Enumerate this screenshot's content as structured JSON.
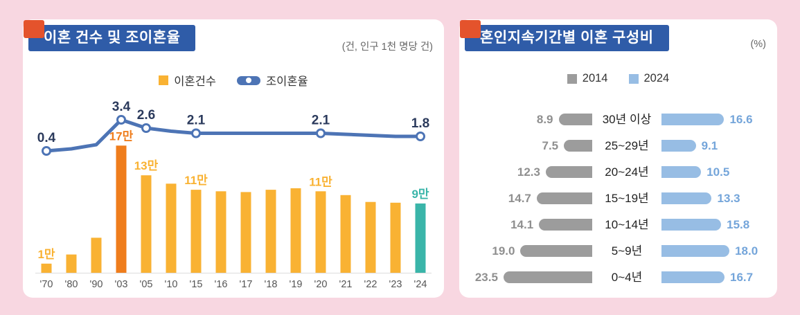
{
  "colors": {
    "page_background": "#f8d7e1",
    "card_background": "#ffffff",
    "ribbon_blue": "#2f5ca8",
    "ribbon_fold_orange": "#e4532c",
    "bar_yellow": "#f9b233",
    "bar_highlight_orange": "#ef7d1c",
    "bar_teal": "#3ab5a9",
    "line_blue": "#4d74b5",
    "gray_2014": "#9c9c9c",
    "blue_2024": "#97bde4"
  },
  "left_panel": {
    "title": "이혼 건수 및 조이혼율",
    "unit": "(건, 인구 1천 명당 건)",
    "legend": [
      {
        "label": "이혼건수",
        "marker": "bar-swatch",
        "color": "#f9b233"
      },
      {
        "label": "조이혼율",
        "marker": "line-pill",
        "color": "#4d74b5"
      }
    ]
  },
  "right_panel": {
    "title": "혼인지속기간별 이혼 구성비",
    "unit": "(%)",
    "legend": [
      {
        "label": "2014",
        "marker": "square",
        "color": "#9c9c9c"
      },
      {
        "label": "2024",
        "marker": "square",
        "color": "#97bde4"
      }
    ]
  },
  "chart_data": [
    {
      "type": "bar",
      "subtype": "combo-bar-line",
      "title": "이혼 건수 및 조이혼율",
      "unit_note": "(건, 인구 1천 명당 건)",
      "categories": [
        "'70",
        "'80",
        "'90",
        "'03",
        "'05",
        "'10",
        "'15",
        "'16",
        "'17",
        "'18",
        "'19",
        "'20",
        "'21",
        "'22",
        "'23",
        "'24"
      ],
      "series": [
        {
          "name": "이혼건수",
          "type": "bar",
          "unit": "만 건",
          "values": [
            1.2,
            2.4,
            4.6,
            16.7,
            12.8,
            11.7,
            10.9,
            10.7,
            10.6,
            10.9,
            11.1,
            10.7,
            10.2,
            9.3,
            9.2,
            9.1
          ],
          "labels": {
            "0": "1만",
            "3": "17만",
            "4": "13만",
            "6": "11만",
            "11": "11만",
            "15": "9만"
          },
          "colors": {
            "default": "#f9b233",
            "3": "#ef7d1c",
            "15": "#3ab5a9"
          }
        },
        {
          "name": "조이혼율",
          "type": "line",
          "unit": "건/인구 1천 명",
          "values": [
            0.4,
            0.6,
            1.0,
            3.4,
            2.6,
            2.3,
            2.1,
            2.1,
            2.1,
            2.1,
            2.1,
            2.1,
            2.0,
            1.9,
            1.8,
            1.8
          ],
          "labels": {
            "0": "0.4",
            "3": "3.4",
            "4": "2.6",
            "6": "2.1",
            "11": "2.1",
            "15": "1.8"
          },
          "marker_indices": [
            0,
            3,
            4,
            6,
            11,
            15
          ],
          "color": "#4d74b5",
          "label_color": "#2b3a5c"
        }
      ],
      "axis": {
        "x_label_color": "#555",
        "baseline_color": "#dcdcdc",
        "legend_position": "top"
      }
    },
    {
      "type": "bar",
      "subtype": "tornado",
      "title": "혼인지속기간별 이혼 구성비",
      "unit_note": "(%)",
      "categories": [
        "30년 이상",
        "25~29년",
        "20~24년",
        "15~19년",
        "10~14년",
        "5~9년",
        "0~4년"
      ],
      "series": [
        {
          "name": "2014",
          "side": "left",
          "values": [
            8.9,
            7.5,
            12.3,
            14.7,
            14.1,
            19.0,
            23.5
          ],
          "color": "#9c9c9c",
          "label_color": "#8f8f8f"
        },
        {
          "name": "2024",
          "side": "right",
          "values": [
            16.6,
            9.1,
            10.5,
            13.3,
            15.8,
            18.0,
            16.7
          ],
          "color": "#97bde4",
          "label_color": "#74a5da"
        }
      ],
      "axis": {
        "value_range": [
          0,
          24
        ],
        "legend_position": "top"
      }
    }
  ]
}
